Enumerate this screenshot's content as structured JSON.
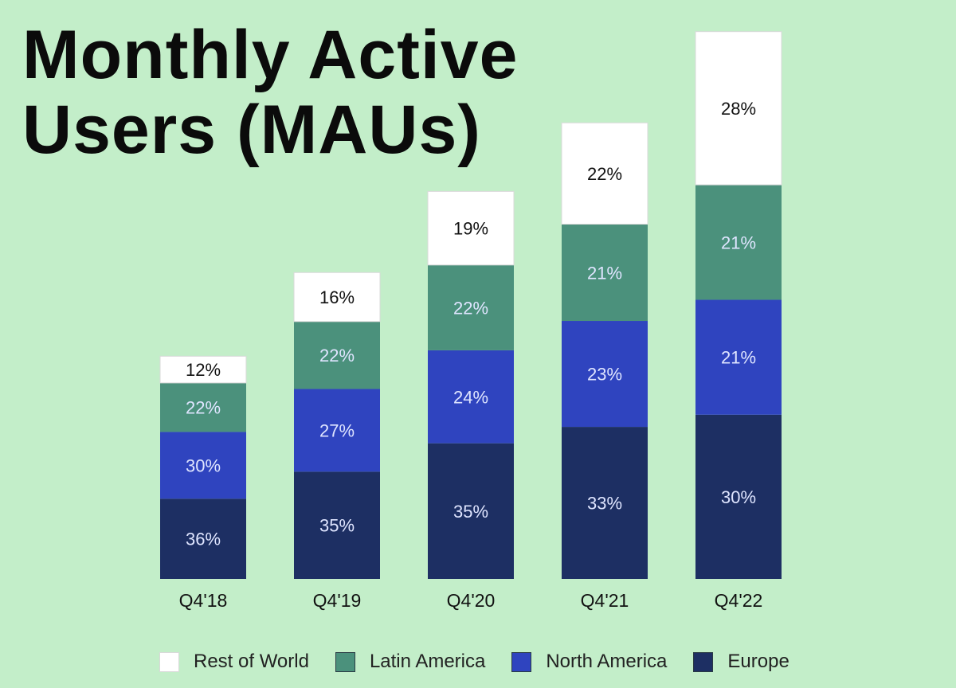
{
  "chart_data": {
    "type": "bar",
    "title": "Monthly Active Users (MAUs)",
    "title_lines": [
      "Monthly Active",
      "Users (MAUs)"
    ],
    "categories": [
      "Q4'18",
      "Q4'19",
      "Q4'20",
      "Q4'21",
      "Q4'22"
    ],
    "stacked": true,
    "relative_total_height": [
      0.354,
      0.487,
      0.616,
      0.725,
      0.87
    ],
    "series": [
      {
        "name": "Europe",
        "color": "#1d2f63",
        "values": [
          36,
          35,
          35,
          33,
          30
        ]
      },
      {
        "name": "North America",
        "color": "#2f44bf",
        "values": [
          30,
          27,
          24,
          23,
          21
        ]
      },
      {
        "name": "Latin America",
        "color": "#4b917c",
        "values": [
          22,
          22,
          22,
          21,
          21
        ]
      },
      {
        "name": "Rest of World",
        "color": "#ffffff",
        "values": [
          12,
          16,
          19,
          22,
          28
        ]
      }
    ],
    "data_labels": "percent",
    "legend": "bottom",
    "grid": false
  }
}
